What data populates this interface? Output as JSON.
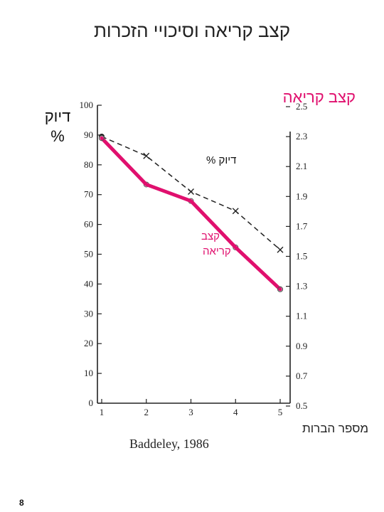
{
  "colors": {
    "accent": "#e0106e",
    "axis": "#222222",
    "dashed": "#222222"
  },
  "slide": {
    "title": "קצב קריאה וסיכויי הזכרות",
    "page_number": "8"
  },
  "chart_data": {
    "type": "line",
    "title": "קצב קריאה וסיכויי הזכרות",
    "xlabel": "מספר הברות",
    "left_axis_title": [
      "דיוק",
      "%"
    ],
    "right_axis_title": "קצב קריאה",
    "credit": "Baddeley, 1986",
    "x": [
      1,
      2,
      3,
      4,
      5
    ],
    "xlim": [
      0.9,
      5.1
    ],
    "ylim_left": [
      0,
      100
    ],
    "ylim_right": [
      0.5,
      2.5
    ],
    "x_ticks": [
      "1",
      "2",
      "3",
      "4",
      "5"
    ],
    "left_ticks": [
      "0",
      "10",
      "20",
      "30",
      "40",
      "50",
      "60",
      "70",
      "80",
      "90",
      "100"
    ],
    "right_ticks": [
      "0.5",
      "0.7",
      "0.9",
      "1.1",
      "1.3",
      "1.5",
      "1.7",
      "1.9",
      "2.1",
      "2.3",
      "2.5"
    ],
    "series": [
      {
        "name": "דיוק %",
        "axis": "left",
        "style": "dashed",
        "marker": "x",
        "values": [
          89.5,
          83,
          71,
          64.5,
          51.5
        ]
      },
      {
        "name": "קצב קריאה",
        "axis": "right",
        "style": "solid-highlight",
        "marker": "o",
        "values": [
          2.29,
          1.98,
          1.87,
          1.56,
          1.28
        ]
      }
    ],
    "annotations": {
      "accuracy_label": "דיוק %",
      "rate_label": [
        "קצב",
        "קריאה"
      ]
    }
  }
}
